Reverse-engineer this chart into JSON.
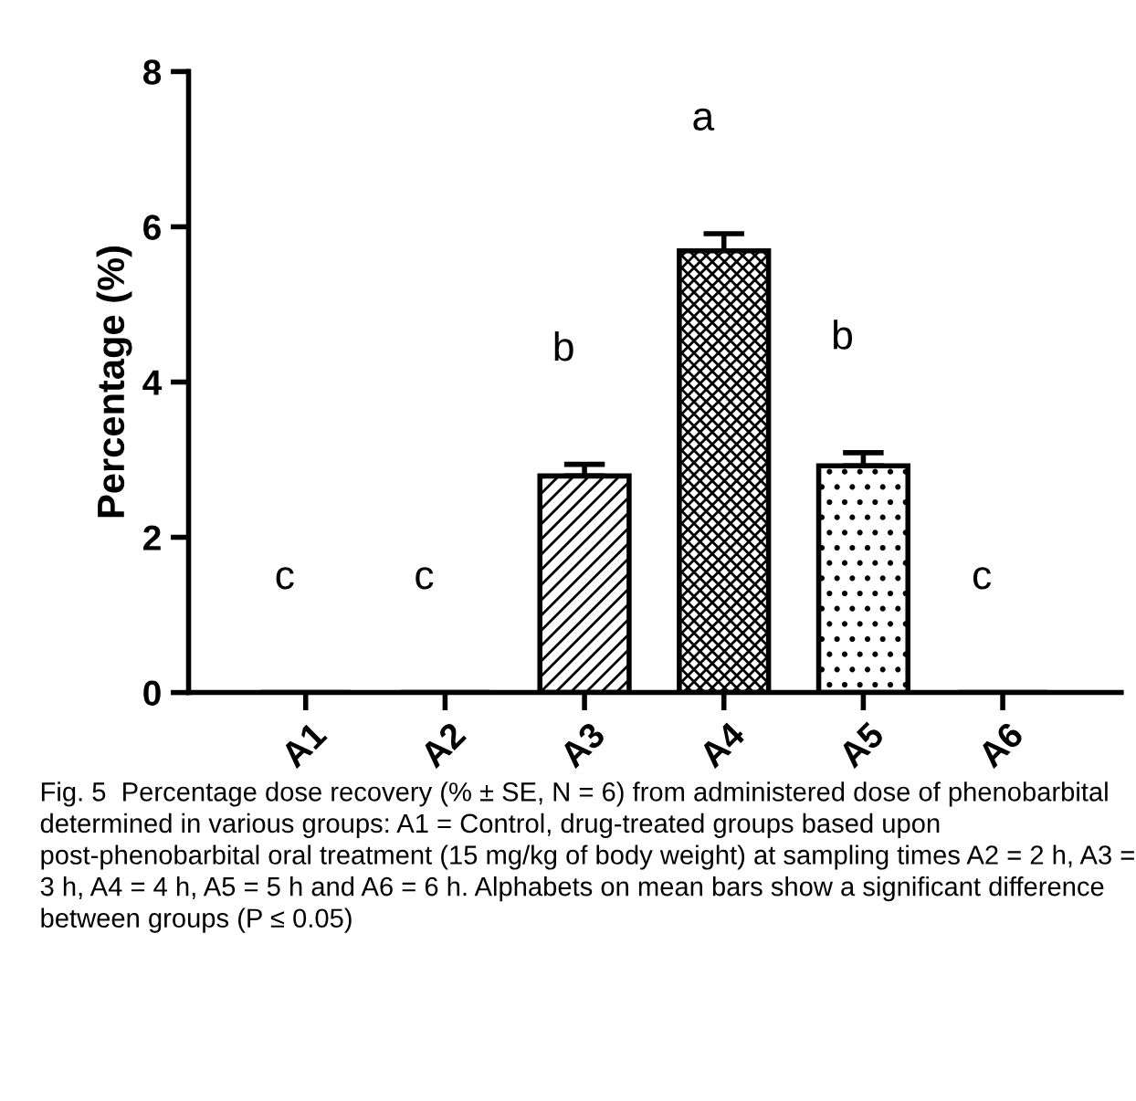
{
  "chart_data": {
    "type": "bar",
    "categories": [
      "A1",
      "A2",
      "A3",
      "A4",
      "A5",
      "A6"
    ],
    "values": [
      0,
      0,
      2.79,
      5.69,
      2.92,
      0
    ],
    "errors": [
      null,
      null,
      0.15,
      0.22,
      0.17,
      null
    ],
    "color": "#000000",
    "ylabel": "Percentage (%)",
    "ylim": [
      0,
      8
    ],
    "yticks": [
      0,
      2,
      4,
      6,
      8
    ],
    "grid": false,
    "legend": false,
    "annotations": [
      "c",
      "c",
      "b",
      "a",
      "b",
      "c",
      "Fig. 5  Percentage dose recovery (% ± SE, N = 6) from administered dose of phenobarbital determined in various groups: A1 = Control, drug-treated groups based upon post-phenobarbital oral treatment (15 mg/kg of body weight) at sampling times A2 = 2 h, A3 = 3 h, A4 = 4 h, A5 = 5 h and A6 = 6 h. Alphabets on mean bars show a significant difference between groups (P ≤ 0.05)"
    ]
  }
}
